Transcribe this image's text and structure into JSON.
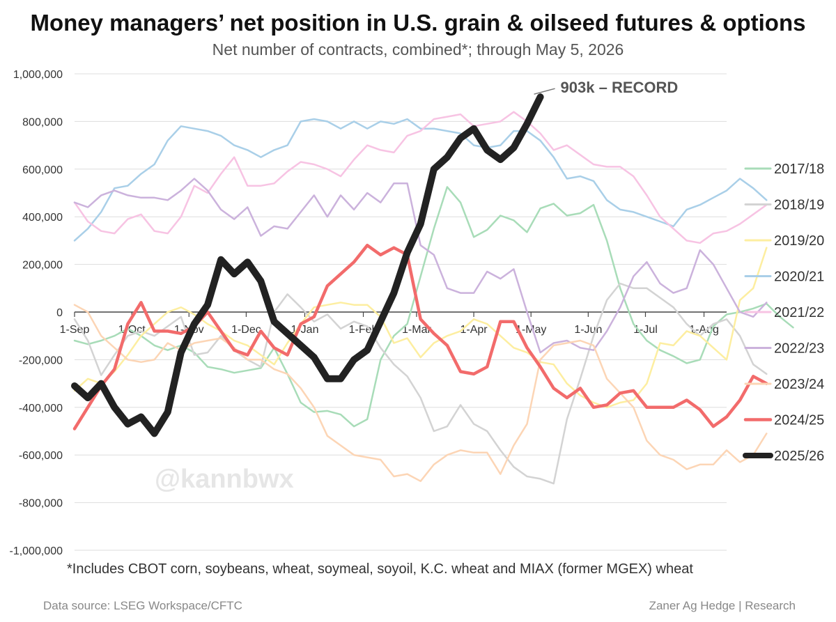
{
  "title": "Money managers’ net position in U.S. grain & oilseed futures & options",
  "subtitle": "Net number of contracts, combined*; through May 5, 2026",
  "footnote": "*Includes CBOT corn, soybeans, wheat, soymeal, soyoil, K.C. wheat and MIAX (former MGEX) wheat",
  "source": "Data source: LSEG Workspace/CFTC",
  "credit": "Zaner Ag Hedge | Research",
  "watermark": "@kannbwx",
  "chart_data": {
    "type": "line",
    "ylim": [
      -1000000,
      1000000
    ],
    "y_ticks": [
      {
        "v": 1000000,
        "label": "1,000,000"
      },
      {
        "v": 800000,
        "label": "800,000"
      },
      {
        "v": 600000,
        "label": "600,000"
      },
      {
        "v": 400000,
        "label": "400,000"
      },
      {
        "v": 200000,
        "label": "200,000"
      },
      {
        "v": 0,
        "label": "0"
      },
      {
        "v": -200000,
        "label": "-200,000"
      },
      {
        "v": -400000,
        "label": "-400,000"
      },
      {
        "v": -600000,
        "label": "-600,000"
      },
      {
        "v": -800000,
        "label": "-800,000"
      },
      {
        "v": -1000000,
        "label": "-1,000,000"
      }
    ],
    "xlim": [
      0,
      49
    ],
    "x_ticks": [
      {
        "w": 0,
        "label": "1-Sep"
      },
      {
        "w": 4.3,
        "label": "1-Oct"
      },
      {
        "w": 8.6,
        "label": "1-Nov"
      },
      {
        "w": 12.9,
        "label": "1-Dec"
      },
      {
        "w": 17.3,
        "label": "1-Jan"
      },
      {
        "w": 21.7,
        "label": "1-Feb"
      },
      {
        "w": 25.7,
        "label": "1-Mar"
      },
      {
        "w": 30.0,
        "label": "1-Apr"
      },
      {
        "w": 34.3,
        "label": "1-May"
      },
      {
        "w": 38.6,
        "label": "1-Jun"
      },
      {
        "w": 42.9,
        "label": "1-Jul"
      },
      {
        "w": 47.3,
        "label": "1-Aug"
      }
    ],
    "annotation": {
      "w": 33.9,
      "v": 903000,
      "text": "903k – RECORD"
    },
    "series": [
      {
        "name": "2017/18",
        "color": "#a8dcb8",
        "width": 2.5,
        "values": [
          -120000,
          -135000,
          -120000,
          -100000,
          -70000,
          -100000,
          -140000,
          -160000,
          -140000,
          -170000,
          -230000,
          -240000,
          -255000,
          -245000,
          -235000,
          -150000,
          -260000,
          -380000,
          -420000,
          -415000,
          -430000,
          -480000,
          -450000,
          -200000,
          -100000,
          -50000,
          150000,
          350000,
          525000,
          460000,
          315000,
          345000,
          405000,
          385000,
          335000,
          435000,
          455000,
          405000,
          415000,
          450000,
          300000,
          100000,
          -50000,
          -120000,
          -160000,
          -185000,
          -215000,
          -200000,
          -60000,
          -10000,
          0,
          15000,
          35000,
          -20000,
          -65000
        ]
      },
      {
        "name": "2018/19",
        "color": "#d3d3d3",
        "width": 2.5,
        "values": [
          -30000,
          -120000,
          -265000,
          -180000,
          -100000,
          -80000,
          -100000,
          -60000,
          -20000,
          -180000,
          -170000,
          -100000,
          -160000,
          -200000,
          -230000,
          0,
          75000,
          20000,
          -40000,
          -10000,
          -70000,
          -40000,
          -60000,
          -150000,
          -220000,
          -270000,
          -360000,
          -500000,
          -480000,
          -390000,
          -470000,
          -500000,
          -580000,
          -650000,
          -690000,
          -700000,
          -720000,
          -450000,
          -280000,
          -100000,
          50000,
          120000,
          100000,
          100000,
          60000,
          20000,
          -50000,
          -100000,
          -50000,
          -30000,
          -100000,
          -220000,
          -260000
        ]
      },
      {
        "name": "2019/20",
        "color": "#fdeea0",
        "width": 2.5,
        "values": [
          -330000,
          -280000,
          -300000,
          -250000,
          -180000,
          -100000,
          -50000,
          0,
          20000,
          -10000,
          -50000,
          -80000,
          -120000,
          -140000,
          -180000,
          -220000,
          -130000,
          -50000,
          20000,
          30000,
          40000,
          30000,
          30000,
          -20000,
          -130000,
          -110000,
          -190000,
          -130000,
          -100000,
          -80000,
          -30000,
          -50000,
          -100000,
          -150000,
          -170000,
          -210000,
          -220000,
          -300000,
          -350000,
          -380000,
          -400000,
          -380000,
          -370000,
          -300000,
          -130000,
          -140000,
          -80000,
          -100000,
          -150000,
          -200000,
          50000,
          100000,
          270000
        ]
      },
      {
        "name": "2020/21",
        "color": "#a9cfe8",
        "width": 2.5,
        "values": [
          300000,
          350000,
          420000,
          520000,
          530000,
          580000,
          620000,
          720000,
          780000,
          770000,
          760000,
          740000,
          700000,
          680000,
          650000,
          680000,
          700000,
          800000,
          810000,
          800000,
          770000,
          800000,
          770000,
          800000,
          790000,
          810000,
          770000,
          770000,
          760000,
          750000,
          700000,
          690000,
          700000,
          760000,
          760000,
          720000,
          650000,
          560000,
          570000,
          550000,
          470000,
          430000,
          420000,
          400000,
          380000,
          360000,
          430000,
          450000,
          480000,
          510000,
          560000,
          520000,
          470000
        ]
      },
      {
        "name": "2021/22",
        "color": "#f7c3e3",
        "width": 2.5,
        "values": [
          460000,
          380000,
          340000,
          330000,
          390000,
          410000,
          340000,
          330000,
          400000,
          530000,
          500000,
          580000,
          650000,
          530000,
          530000,
          540000,
          590000,
          630000,
          620000,
          600000,
          570000,
          640000,
          700000,
          680000,
          670000,
          740000,
          760000,
          810000,
          820000,
          830000,
          780000,
          790000,
          800000,
          840000,
          800000,
          750000,
          680000,
          700000,
          660000,
          620000,
          610000,
          610000,
          570000,
          490000,
          400000,
          350000,
          300000,
          290000,
          330000,
          340000,
          370000,
          410000,
          450000
        ]
      },
      {
        "name": "2022/23",
        "color": "#cbb2dc",
        "width": 2.5,
        "values": [
          460000,
          440000,
          490000,
          510000,
          490000,
          480000,
          480000,
          470000,
          510000,
          560000,
          510000,
          430000,
          390000,
          440000,
          320000,
          360000,
          350000,
          420000,
          490000,
          400000,
          490000,
          430000,
          500000,
          460000,
          540000,
          540000,
          280000,
          240000,
          100000,
          80000,
          80000,
          170000,
          140000,
          180000,
          0,
          -170000,
          -130000,
          -120000,
          -150000,
          -160000,
          -80000,
          20000,
          150000,
          210000,
          120000,
          80000,
          100000,
          260000,
          200000,
          100000,
          0,
          -20000,
          40000
        ]
      },
      {
        "name": "2023/24",
        "color": "#fcd5b5",
        "width": 2.5,
        "values": [
          30000,
          0,
          -100000,
          -150000,
          -200000,
          -210000,
          -200000,
          -130000,
          -160000,
          -130000,
          -120000,
          -110000,
          -150000,
          -200000,
          -200000,
          -240000,
          -260000,
          -320000,
          -400000,
          -520000,
          -560000,
          -600000,
          -610000,
          -620000,
          -690000,
          -680000,
          -710000,
          -640000,
          -600000,
          -580000,
          -590000,
          -590000,
          -680000,
          -560000,
          -470000,
          -200000,
          -140000,
          -130000,
          -120000,
          -140000,
          -280000,
          -340000,
          -400000,
          -540000,
          -600000,
          -620000,
          -660000,
          -640000,
          -640000,
          -580000,
          -630000,
          -600000,
          -510000
        ]
      },
      {
        "name": "2024/25",
        "color": "#f26b6b",
        "width": 4.5,
        "values": [
          -490000,
          -400000,
          -310000,
          -240000,
          -50000,
          40000,
          -80000,
          -80000,
          -90000,
          -60000,
          0,
          -80000,
          -160000,
          -180000,
          -80000,
          -150000,
          -180000,
          -50000,
          -20000,
          110000,
          160000,
          210000,
          280000,
          240000,
          270000,
          240000,
          -30000,
          -90000,
          -140000,
          -250000,
          -260000,
          -230000,
          -40000,
          -40000,
          -150000,
          -230000,
          -320000,
          -360000,
          -320000,
          -400000,
          -390000,
          -340000,
          -330000,
          -400000,
          -400000,
          -400000,
          -370000,
          -410000,
          -480000,
          -440000,
          -370000,
          -270000,
          -300000
        ]
      },
      {
        "name": "2025/26",
        "color": "#222222",
        "width": 10,
        "values": [
          -310000,
          -360000,
          -300000,
          -400000,
          -470000,
          -440000,
          -510000,
          -420000,
          -170000,
          -50000,
          30000,
          220000,
          160000,
          210000,
          130000,
          -40000,
          -90000,
          -140000,
          -190000,
          -280000,
          -280000,
          -200000,
          -160000,
          -40000,
          80000,
          250000,
          370000,
          600000,
          650000,
          730000,
          770000,
          680000,
          640000,
          690000,
          790000,
          903000
        ]
      }
    ]
  }
}
